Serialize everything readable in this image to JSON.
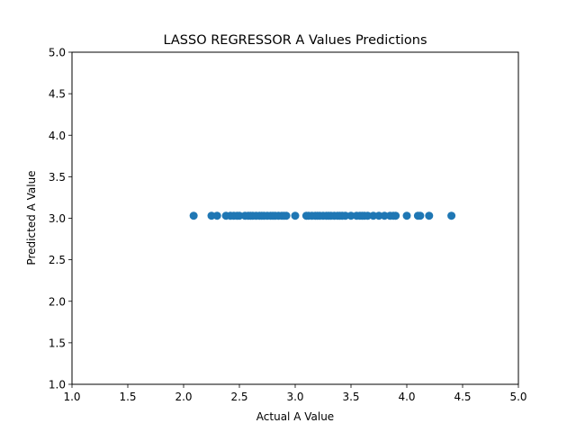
{
  "chart_data": {
    "type": "scatter",
    "title": "LASSO REGRESSOR A Values Predictions",
    "xlabel": "Actual A Value",
    "ylabel": "Predicted A Value",
    "xlim": [
      1.0,
      5.0
    ],
    "ylim": [
      1.0,
      5.0
    ],
    "xticks": [
      "1.0",
      "1.5",
      "2.0",
      "2.5",
      "3.0",
      "3.5",
      "4.0",
      "4.5",
      "5.0"
    ],
    "yticks": [
      "1.0",
      "1.5",
      "2.0",
      "2.5",
      "3.0",
      "3.5",
      "4.0",
      "4.5",
      "5.0"
    ],
    "grid": false,
    "marker_color": "#1f77b4",
    "series": [
      {
        "x": [
          2.09,
          2.25,
          2.3,
          2.38,
          2.42,
          2.45,
          2.48,
          2.5,
          2.55,
          2.58,
          2.6,
          2.62,
          2.65,
          2.68,
          2.7,
          2.72,
          2.75,
          2.78,
          2.8,
          2.82,
          2.85,
          2.88,
          2.9,
          2.92,
          3.0,
          3.1,
          3.12,
          3.15,
          3.18,
          3.2,
          3.22,
          3.25,
          3.28,
          3.3,
          3.32,
          3.35,
          3.38,
          3.4,
          3.42,
          3.45,
          3.5,
          3.55,
          3.58,
          3.6,
          3.62,
          3.65,
          3.7,
          3.75,
          3.8,
          3.85,
          3.88,
          3.9,
          4.0,
          4.1,
          4.12,
          4.2,
          4.4
        ],
        "y": [
          3.03,
          3.03,
          3.03,
          3.03,
          3.03,
          3.03,
          3.03,
          3.03,
          3.03,
          3.03,
          3.03,
          3.03,
          3.03,
          3.03,
          3.03,
          3.03,
          3.03,
          3.03,
          3.03,
          3.03,
          3.03,
          3.03,
          3.03,
          3.03,
          3.03,
          3.03,
          3.03,
          3.03,
          3.03,
          3.03,
          3.03,
          3.03,
          3.03,
          3.03,
          3.03,
          3.03,
          3.03,
          3.03,
          3.03,
          3.03,
          3.03,
          3.03,
          3.03,
          3.03,
          3.03,
          3.03,
          3.03,
          3.03,
          3.03,
          3.03,
          3.03,
          3.03,
          3.03,
          3.03,
          3.03,
          3.03,
          3.03
        ]
      }
    ]
  }
}
